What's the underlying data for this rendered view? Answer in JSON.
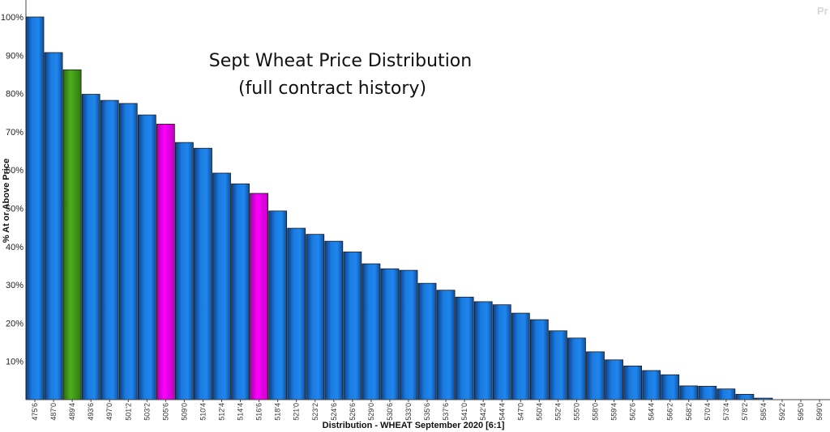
{
  "chart_data": {
    "type": "bar",
    "title": "Sept Wheat Price Distribution",
    "subtitle": "(full contract history)",
    "ylabel": "% At or Above Price",
    "xlabel": "Distribution - WHEAT September 2020  [6:1]",
    "corner_mark": "Pr",
    "ylim": [
      0,
      100
    ],
    "yticks": [
      "10%",
      "20%",
      "30%",
      "40%",
      "50%",
      "60%",
      "70%",
      "80%",
      "90%",
      "100%"
    ],
    "categories": [
      "475'6",
      "487'0",
      "489'4",
      "493'6",
      "497'0",
      "501'2",
      "503'2",
      "505'6",
      "509'0",
      "510'4",
      "512'4",
      "514'4",
      "516'6",
      "518'4",
      "521'0",
      "523'2",
      "524'6",
      "526'6",
      "529'0",
      "530'6",
      "533'0",
      "535'6",
      "537'6",
      "541'0",
      "542'4",
      "544'4",
      "547'0",
      "550'4",
      "552'4",
      "555'0",
      "558'0",
      "559'4",
      "562'6",
      "564'4",
      "566'2",
      "568'2",
      "570'4",
      "573'4",
      "578'2",
      "585'4",
      "592'2",
      "595'0",
      "599'0"
    ],
    "values": [
      100,
      90.7,
      86.2,
      79.8,
      78.2,
      77.4,
      74.4,
      72.0,
      67.2,
      65.7,
      59.2,
      56.4,
      53.9,
      49.3,
      44.8,
      43.2,
      41.4,
      38.6,
      35.5,
      34.2,
      33.8,
      30.4,
      28.6,
      26.8,
      25.6,
      24.8,
      22.6,
      20.9,
      18.0,
      16.1,
      12.5,
      10.4,
      8.8,
      7.6,
      6.5,
      3.6,
      3.5,
      2.8,
      1.4,
      0.4,
      0,
      0,
      0
    ],
    "highlight": {
      "2": "green",
      "7": "magenta",
      "12": "magenta"
    },
    "highlight_label": {
      "2": "green"
    },
    "colors": {
      "bar": "#1976d6",
      "bar_dark": "#0c3f86",
      "bar_light": "#3aa0ff",
      "green": "#4caf1c",
      "green_dark": "#2c6a0c",
      "magenta": "#ff00ff",
      "magenta_dark": "#a400a4",
      "label_green": "#4caf1c"
    }
  }
}
